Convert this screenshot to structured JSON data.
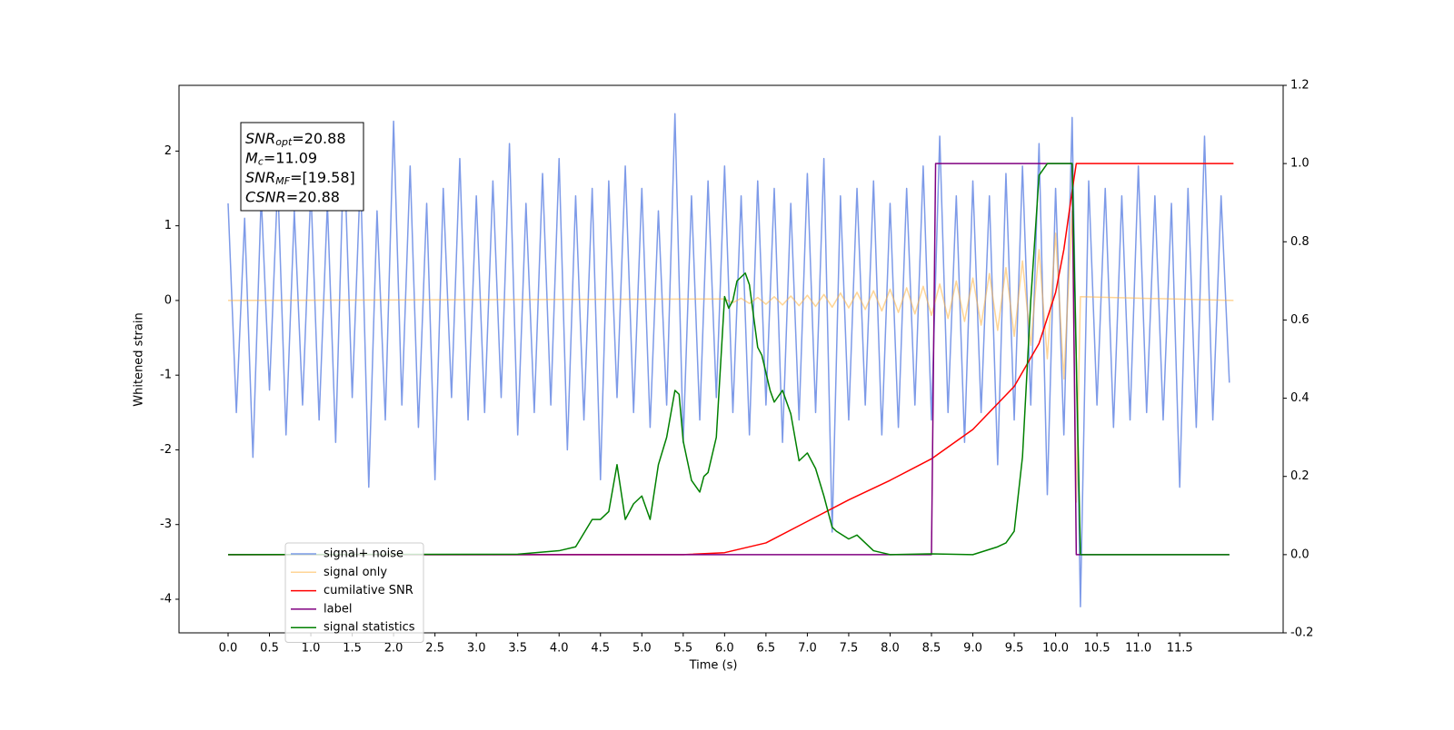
{
  "chart_data": {
    "type": "line",
    "xlabel": "Time (s)",
    "ylabel": "Whitened strain",
    "xlim": [
      -0.593,
      12.75
    ],
    "ylim": [
      -4.45,
      2.88
    ],
    "y2lim": [
      -0.2,
      1.2
    ],
    "xticks": [
      {
        "value": 0,
        "label": "0.0"
      },
      0.5,
      {
        "value": 1,
        "label": "1.0"
      },
      1.5,
      {
        "value": 2,
        "label": "2.0"
      },
      2.5,
      {
        "value": 3,
        "label": "3.0"
      },
      3.5,
      {
        "value": 4,
        "label": "4.0"
      },
      4.5,
      {
        "value": 5,
        "label": "5.0"
      },
      5.5,
      {
        "value": 6,
        "label": "6.0"
      },
      6.5,
      {
        "value": 7,
        "label": "7.0"
      },
      7.5,
      {
        "value": 8,
        "label": "8.0"
      },
      8.5,
      {
        "value": 9,
        "label": "9.0"
      },
      9.5,
      {
        "value": 10,
        "label": "10.0"
      },
      10.5,
      {
        "value": 11,
        "label": "11.0"
      },
      11.5
    ],
    "yticks": [
      -4,
      -3,
      -2,
      -1,
      0,
      1,
      2
    ],
    "y2ticks": [
      -0.2,
      {
        "value": 0,
        "label": "0.0"
      },
      0.2,
      0.4,
      0.6,
      0.8,
      {
        "value": 1,
        "label": "1.0"
      },
      1.2
    ],
    "legend": "lower left",
    "annotation_lines": [
      {
        "symbol": "SNR",
        "subscript": "opt",
        "text": "=20.88"
      },
      {
        "symbol": "M",
        "subscript": "c",
        "text": "=11.09"
      },
      {
        "symbol": "SNR",
        "subscript": "MF",
        "text": "=[19.58]"
      },
      {
        "symbol": "CSNR",
        "text": "=20.88"
      }
    ],
    "series": [
      {
        "name": "signal+ noise",
        "color": "#6f8fe6",
        "alpha": 0.9,
        "x": [
          0.0,
          0.1,
          0.2,
          0.3,
          0.4,
          0.5,
          0.6,
          0.7,
          0.8,
          0.9,
          1.0,
          1.1,
          1.2,
          1.3,
          1.4,
          1.5,
          1.6,
          1.7,
          1.8,
          1.9,
          2.0,
          2.1,
          2.2,
          2.3,
          2.4,
          2.5,
          2.6,
          2.7,
          2.8,
          2.9,
          3.0,
          3.1,
          3.2,
          3.3,
          3.4,
          3.5,
          3.6,
          3.7,
          3.8,
          3.9,
          4.0,
          4.1,
          4.2,
          4.3,
          4.4,
          4.5,
          4.6,
          4.7,
          4.8,
          4.9,
          5.0,
          5.1,
          5.2,
          5.3,
          5.4,
          5.5,
          5.6,
          5.7,
          5.8,
          5.9,
          6.0,
          6.1,
          6.2,
          6.3,
          6.4,
          6.5,
          6.6,
          6.7,
          6.8,
          6.9,
          7.0,
          7.1,
          7.2,
          7.3,
          7.4,
          7.5,
          7.6,
          7.7,
          7.8,
          7.9,
          8.0,
          8.1,
          8.2,
          8.3,
          8.4,
          8.5,
          8.6,
          8.7,
          8.8,
          8.9,
          9.0,
          9.1,
          9.2,
          9.3,
          9.4,
          9.5,
          9.6,
          9.7,
          9.8,
          9.9,
          10.0,
          10.1,
          10.2,
          10.3,
          10.4,
          10.5,
          10.6,
          10.7,
          10.8,
          10.9,
          11.0,
          11.1,
          11.2,
          11.3,
          11.4,
          11.5,
          11.6,
          11.7,
          11.8,
          11.9,
          12.0,
          12.1
        ],
        "values": [
          1.3,
          -1.5,
          1.1,
          -2.1,
          1.4,
          -1.2,
          1.6,
          -1.8,
          1.2,
          -1.4,
          1.5,
          -1.6,
          1.3,
          -1.9,
          2.1,
          -1.3,
          1.7,
          -2.5,
          1.2,
          -1.6,
          2.4,
          -1.4,
          1.8,
          -1.7,
          1.3,
          -2.4,
          1.5,
          -1.3,
          1.9,
          -1.6,
          1.4,
          -1.5,
          1.6,
          -1.3,
          2.1,
          -1.8,
          1.3,
          -1.5,
          1.7,
          -1.4,
          1.9,
          -2.0,
          1.4,
          -1.6,
          1.5,
          -2.4,
          1.6,
          -1.3,
          1.8,
          -1.5,
          1.5,
          -1.7,
          1.2,
          -1.4,
          2.5,
          -1.9,
          1.4,
          -1.6,
          1.6,
          -1.3,
          1.8,
          -1.5,
          1.4,
          -1.8,
          1.6,
          -1.4,
          1.5,
          -1.9,
          1.3,
          -1.6,
          1.7,
          -1.5,
          1.9,
          -3.1,
          1.4,
          -1.6,
          1.5,
          -1.4,
          1.6,
          -1.8,
          1.3,
          -1.7,
          1.5,
          -1.4,
          1.8,
          -1.6,
          2.2,
          -1.5,
          1.4,
          -1.9,
          1.6,
          -1.5,
          1.4,
          -2.2,
          1.7,
          -1.6,
          1.8,
          -1.4,
          2.1,
          -2.6,
          1.5,
          -1.8,
          2.45,
          -4.1,
          1.6,
          -1.4,
          1.5,
          -1.7,
          1.4,
          -1.6,
          1.8,
          -1.5,
          1.4,
          -1.6,
          1.3,
          -2.5,
          1.5,
          -1.7,
          2.2,
          -1.6,
          1.4,
          -1.1
        ]
      },
      {
        "name": "signal only",
        "color": "#ffb340",
        "alpha": 0.55,
        "x": [
          0,
          6.0,
          6.1,
          6.2,
          6.3,
          6.4,
          6.5,
          6.6,
          6.7,
          6.8,
          6.9,
          7.0,
          7.1,
          7.2,
          7.3,
          7.4,
          7.5,
          7.6,
          7.7,
          7.8,
          7.9,
          8.0,
          8.1,
          8.2,
          8.3,
          8.4,
          8.5,
          8.6,
          8.7,
          8.8,
          8.9,
          9.0,
          9.1,
          9.2,
          9.3,
          9.4,
          9.5,
          9.6,
          9.7,
          9.8,
          9.9,
          10.0,
          10.1,
          10.2,
          10.25,
          10.3,
          12.15
        ],
        "values": [
          0,
          0.02,
          -0.03,
          0.03,
          -0.04,
          0.04,
          -0.05,
          0.05,
          -0.06,
          0.06,
          -0.07,
          0.07,
          -0.08,
          0.08,
          -0.09,
          0.1,
          -0.1,
          0.11,
          -0.12,
          0.13,
          -0.14,
          0.15,
          -0.16,
          0.17,
          -0.18,
          0.19,
          -0.2,
          0.22,
          -0.24,
          0.26,
          -0.28,
          0.3,
          -0.33,
          0.36,
          -0.4,
          0.44,
          -0.48,
          0.53,
          -0.6,
          0.68,
          -0.78,
          0.9,
          -1.05,
          1.2,
          -2.7,
          0.05,
          0
        ]
      },
      {
        "name": "cumilative SNR",
        "color": "#ff0000",
        "alpha": 1,
        "axis": "y2",
        "x": [
          0,
          5.5,
          6.0,
          6.5,
          7.0,
          7.5,
          8.0,
          8.5,
          9.0,
          9.5,
          9.8,
          10.0,
          10.1,
          10.2,
          10.25,
          12.15
        ],
        "values": [
          0,
          0,
          0.005,
          0.03,
          0.085,
          0.14,
          0.19,
          0.245,
          0.32,
          0.43,
          0.54,
          0.67,
          0.78,
          0.93,
          1.0,
          1.0
        ]
      },
      {
        "name": "label",
        "color": "#800080",
        "alpha": 1,
        "axis": "y2",
        "x": [
          0,
          8.5,
          8.55,
          10.2,
          10.25,
          12.1
        ],
        "values": [
          0,
          0,
          1,
          1,
          0,
          0
        ]
      },
      {
        "name": "signal statistics",
        "color": "#008000",
        "alpha": 1,
        "axis": "y2",
        "x": [
          0,
          3.5,
          4.0,
          4.2,
          4.4,
          4.5,
          4.6,
          4.7,
          4.8,
          4.9,
          5.0,
          5.1,
          5.2,
          5.3,
          5.4,
          5.45,
          5.5,
          5.6,
          5.7,
          5.75,
          5.8,
          5.9,
          6.0,
          6.05,
          6.1,
          6.15,
          6.25,
          6.3,
          6.4,
          6.45,
          6.55,
          6.6,
          6.7,
          6.8,
          6.9,
          7.0,
          7.1,
          7.2,
          7.3,
          7.35,
          7.5,
          7.6,
          7.7,
          7.8,
          7.9,
          8.0,
          8.5,
          9.0,
          9.3,
          9.4,
          9.5,
          9.6,
          9.7,
          9.8,
          9.9,
          10.0,
          10.2,
          10.25,
          10.3,
          12.1
        ],
        "values": [
          0,
          0.001,
          0.01,
          0.02,
          0.09,
          0.09,
          0.11,
          0.23,
          0.09,
          0.13,
          0.15,
          0.09,
          0.23,
          0.3,
          0.42,
          0.41,
          0.29,
          0.19,
          0.16,
          0.2,
          0.21,
          0.3,
          0.66,
          0.63,
          0.65,
          0.7,
          0.72,
          0.69,
          0.53,
          0.51,
          0.42,
          0.39,
          0.42,
          0.36,
          0.24,
          0.26,
          0.22,
          0.15,
          0.07,
          0.06,
          0.04,
          0.05,
          0.03,
          0.01,
          0.005,
          0,
          0.002,
          0,
          0.02,
          0.03,
          0.06,
          0.25,
          0.65,
          0.97,
          1.0,
          1.0,
          1.0,
          0.5,
          0,
          0
        ]
      }
    ]
  }
}
